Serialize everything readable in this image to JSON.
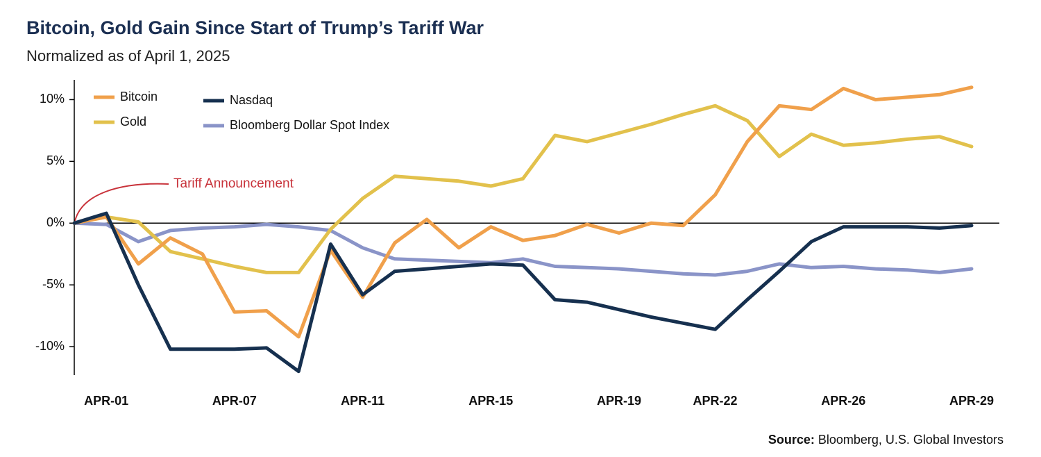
{
  "chart_data": {
    "type": "line",
    "title": "Bitcoin, Gold Gain Since Start of Trump’s Tariff War",
    "subtitle": "Normalized as of April 1, 2025",
    "annotation": "Tariff Announcement",
    "source_label": "Source:",
    "source": "Bloomberg, U.S. Global Investors",
    "categories": [
      null,
      "APR-01",
      null,
      null,
      null,
      "APR-07",
      null,
      null,
      null,
      "APR-11",
      null,
      null,
      null,
      "APR-15",
      null,
      null,
      null,
      "APR-19",
      null,
      null,
      "APR-22",
      null,
      null,
      null,
      "APR-26",
      null,
      null,
      null,
      "APR-29"
    ],
    "series": [
      {
        "name": "Bitcoin",
        "color": "#f0a04b",
        "values": [
          0,
          0.5,
          -3.3,
          -1.2,
          -2.5,
          -7.2,
          -7.1,
          -9.2,
          -2.2,
          -6.0,
          -1.6,
          0.3,
          -2.0,
          -0.3,
          -1.4,
          -1.0,
          -0.1,
          -0.8,
          0.0,
          -0.2,
          2.3,
          6.6,
          9.5,
          9.2,
          10.9,
          10.0,
          10.2,
          10.4,
          11.0
        ]
      },
      {
        "name": "Gold",
        "color": "#e2c14c",
        "values": [
          0,
          0.5,
          0.1,
          -2.3,
          -2.9,
          -3.5,
          -4.0,
          -4.0,
          -0.5,
          2.0,
          3.8,
          3.6,
          3.4,
          3.0,
          3.6,
          7.1,
          6.6,
          7.3,
          8.0,
          8.8,
          9.5,
          8.3,
          5.4,
          7.2,
          6.3,
          6.5,
          6.8,
          7.0,
          6.2
        ]
      },
      {
        "name": "Nasdaq",
        "color": "#16304f",
        "values": [
          0,
          0.8,
          -5.0,
          -10.2,
          -10.2,
          -10.2,
          -10.1,
          -12.0,
          -1.7,
          -5.8,
          -3.9,
          -3.7,
          -3.5,
          -3.3,
          -3.4,
          -6.2,
          -6.4,
          -7.0,
          -7.6,
          -8.1,
          -8.6,
          -6.2,
          -3.9,
          -1.5,
          -0.3,
          -0.3,
          -0.3,
          -0.4,
          -0.2
        ]
      },
      {
        "name": "Bloomberg Dollar Spot Index",
        "color": "#8a94c8",
        "values": [
          0,
          -0.1,
          -1.5,
          -0.6,
          -0.4,
          -0.3,
          -0.1,
          -0.3,
          -0.6,
          -2.0,
          -2.9,
          -3.0,
          -3.1,
          -3.2,
          -2.9,
          -3.5,
          -3.6,
          -3.7,
          -3.9,
          -4.1,
          -4.2,
          -3.9,
          -3.3,
          -3.6,
          -3.5,
          -3.7,
          -3.8,
          -4.0,
          -3.7
        ]
      }
    ],
    "ylim": [
      -12.3,
      11.6
    ],
    "yticks": [
      {
        "value": -10,
        "label": "-10%"
      },
      {
        "value": -5,
        "label": "-5%"
      },
      {
        "value": 0,
        "label": "0%"
      },
      {
        "value": 5,
        "label": "5%"
      },
      {
        "value": 10,
        "label": "10%"
      }
    ],
    "grid": false,
    "legend": "upper left"
  }
}
